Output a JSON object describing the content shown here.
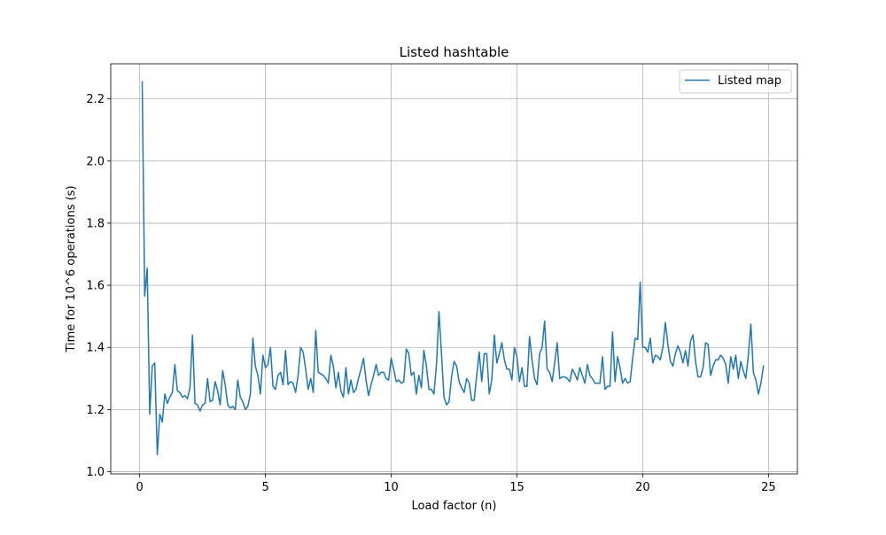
{
  "chart_data": {
    "type": "line",
    "title": "Listed hashtable",
    "xlabel": "Load factor (n)",
    "ylabel": "Time for 10^6 operations (s)",
    "xlim": [
      -1.15,
      26.15
    ],
    "ylim": [
      0.993,
      2.313
    ],
    "xticks": [
      0,
      5,
      10,
      15,
      20,
      25
    ],
    "xtick_labels": [
      "0",
      "5",
      "10",
      "15",
      "20",
      "25"
    ],
    "yticks": [
      1.0,
      1.2,
      1.4,
      1.6,
      1.8,
      2.0,
      2.2
    ],
    "ytick_labels": [
      "1.0",
      "1.2",
      "1.4",
      "1.6",
      "1.8",
      "2.0",
      "2.2"
    ],
    "grid": true,
    "legend_position": "upper-right",
    "series": [
      {
        "name": "Listed map",
        "color": "#1f77b4",
        "x_start": 0.1,
        "x_step": 0.1,
        "y": [
          2.255,
          1.565,
          1.655,
          1.185,
          1.34,
          1.35,
          1.055,
          1.185,
          1.16,
          1.25,
          1.22,
          1.24,
          1.255,
          1.345,
          1.26,
          1.255,
          1.24,
          1.245,
          1.235,
          1.27,
          1.44,
          1.22,
          1.215,
          1.195,
          1.215,
          1.22,
          1.3,
          1.225,
          1.23,
          1.29,
          1.26,
          1.215,
          1.325,
          1.28,
          1.215,
          1.205,
          1.21,
          1.2,
          1.295,
          1.24,
          1.225,
          1.2,
          1.21,
          1.25,
          1.43,
          1.34,
          1.31,
          1.25,
          1.375,
          1.335,
          1.345,
          1.4,
          1.275,
          1.265,
          1.31,
          1.32,
          1.28,
          1.39,
          1.28,
          1.29,
          1.285,
          1.255,
          1.31,
          1.4,
          1.385,
          1.33,
          1.265,
          1.3,
          1.255,
          1.455,
          1.32,
          1.315,
          1.31,
          1.3,
          1.285,
          1.375,
          1.34,
          1.27,
          1.32,
          1.26,
          1.24,
          1.335,
          1.25,
          1.295,
          1.255,
          1.265,
          1.3,
          1.33,
          1.365,
          1.295,
          1.245,
          1.28,
          1.31,
          1.345,
          1.31,
          1.32,
          1.32,
          1.3,
          1.295,
          1.365,
          1.33,
          1.29,
          1.295,
          1.285,
          1.29,
          1.395,
          1.38,
          1.31,
          1.32,
          1.25,
          1.31,
          1.27,
          1.39,
          1.34,
          1.265,
          1.265,
          1.25,
          1.345,
          1.515,
          1.38,
          1.24,
          1.215,
          1.225,
          1.305,
          1.355,
          1.34,
          1.29,
          1.27,
          1.255,
          1.3,
          1.285,
          1.23,
          1.23,
          1.31,
          1.385,
          1.29,
          1.38,
          1.38,
          1.25,
          1.295,
          1.44,
          1.35,
          1.38,
          1.415,
          1.36,
          1.33,
          1.33,
          1.295,
          1.4,
          1.37,
          1.29,
          1.335,
          1.275,
          1.275,
          1.435,
          1.36,
          1.3,
          1.28,
          1.38,
          1.4,
          1.485,
          1.33,
          1.32,
          1.29,
          1.35,
          1.415,
          1.3,
          1.305,
          1.305,
          1.3,
          1.29,
          1.33,
          1.315,
          1.295,
          1.335,
          1.31,
          1.285,
          1.345,
          1.31,
          1.3,
          1.285,
          1.285,
          1.285,
          1.37,
          1.265,
          1.275,
          1.275,
          1.45,
          1.29,
          1.37,
          1.335,
          1.285,
          1.3,
          1.285,
          1.29,
          1.365,
          1.43,
          1.425,
          1.61,
          1.4,
          1.4,
          1.385,
          1.43,
          1.35,
          1.375,
          1.37,
          1.36,
          1.4,
          1.48,
          1.41,
          1.355,
          1.34,
          1.38,
          1.405,
          1.385,
          1.35,
          1.39,
          1.34,
          1.42,
          1.44,
          1.355,
          1.305,
          1.305,
          1.335,
          1.415,
          1.41,
          1.31,
          1.34,
          1.36,
          1.36,
          1.375,
          1.365,
          1.345,
          1.285,
          1.37,
          1.33,
          1.375,
          1.3,
          1.355,
          1.325,
          1.3,
          1.375,
          1.475,
          1.32,
          1.295,
          1.25,
          1.285,
          1.34
        ]
      }
    ]
  }
}
